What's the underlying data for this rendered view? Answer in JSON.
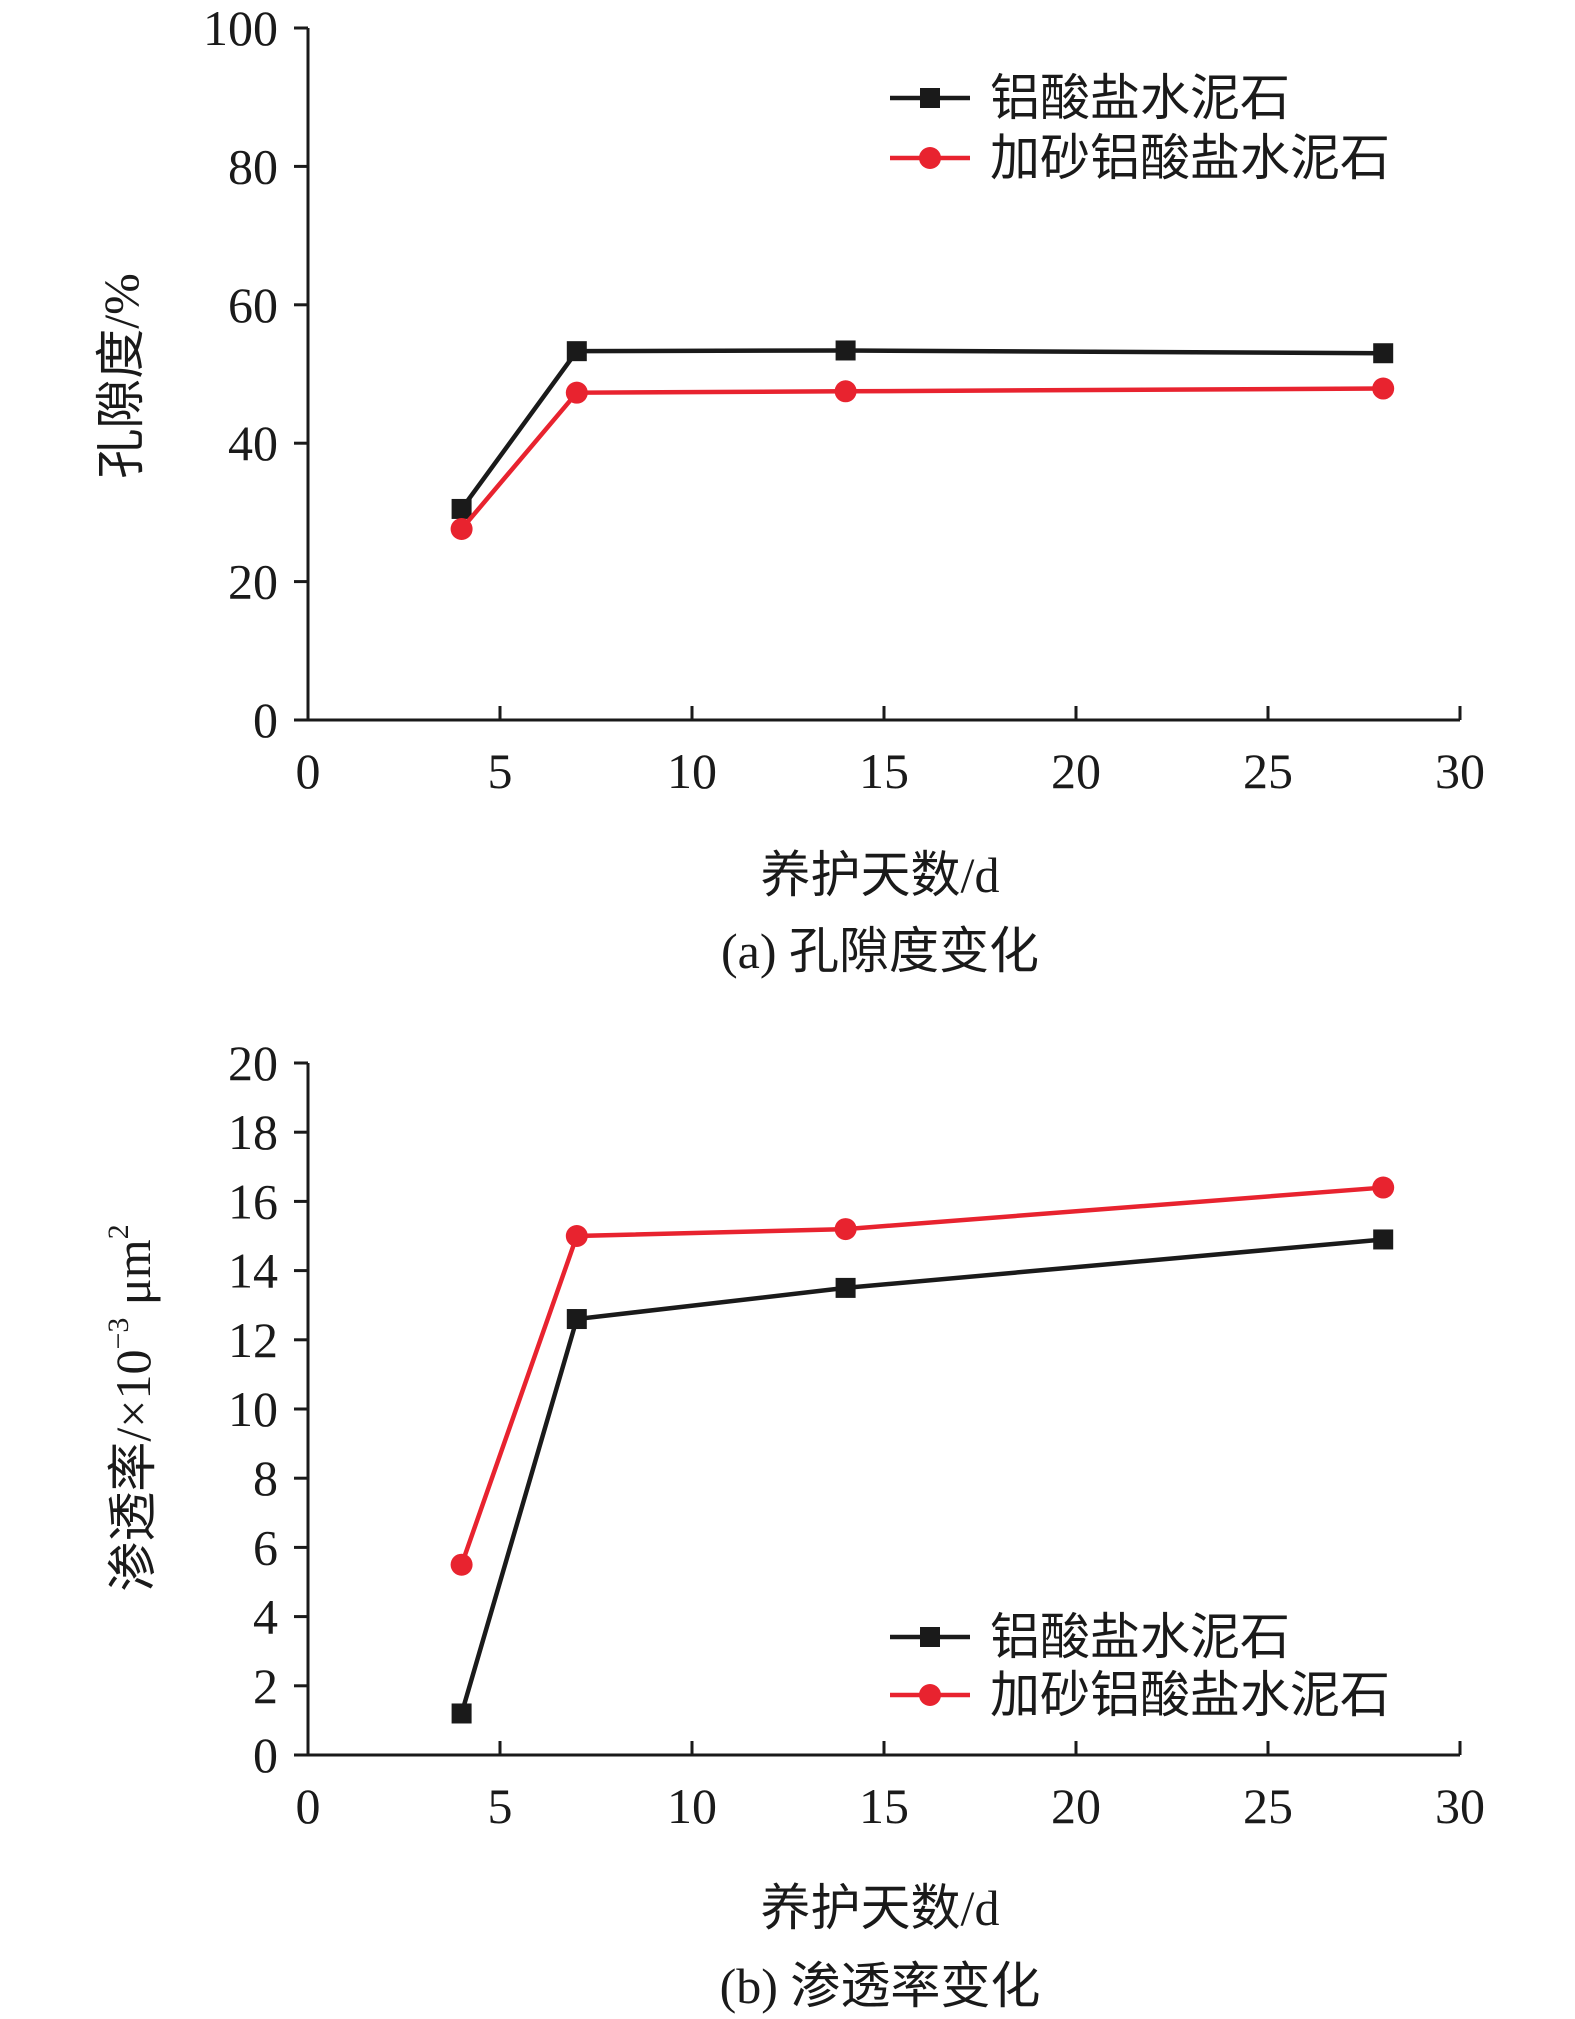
{
  "chart_data": [
    {
      "type": "line",
      "caption": "(a) 孔隙度变化",
      "xlabel": "养护天数/d",
      "ylabel": "孔隙度/%",
      "xlim": [
        0,
        30
      ],
      "ylim": [
        0,
        100
      ],
      "xticks": [
        "0",
        "5",
        "10",
        "15",
        "20",
        "25",
        "30"
      ],
      "yticks": [
        "0",
        "20",
        "40",
        "60",
        "80",
        "100"
      ],
      "x": [
        4,
        7,
        14,
        28
      ],
      "legend_position": "top-right",
      "series": [
        {
          "name": "铝酸盐水泥石",
          "color": "#1a1a1a",
          "marker": "square",
          "values": [
            30.5,
            53.3,
            53.4,
            53.0
          ]
        },
        {
          "name": "加砂铝酸盐水泥石",
          "color": "#e8232f",
          "marker": "circle",
          "values": [
            27.6,
            47.3,
            47.5,
            47.9
          ]
        }
      ]
    },
    {
      "type": "line",
      "caption": "(b) 渗透率变化",
      "xlabel": "养护天数/d",
      "ylabel_main": "渗透率/×10",
      "ylabel_exp": "−3",
      "ylabel_unit": " μm",
      "ylabel_unit_exp": "2",
      "xlim": [
        0,
        30
      ],
      "ylim": [
        0,
        20
      ],
      "xticks": [
        "0",
        "5",
        "10",
        "15",
        "20",
        "25",
        "30"
      ],
      "yticks": [
        "0",
        "2",
        "4",
        "6",
        "8",
        "10",
        "12",
        "14",
        "16",
        "18",
        "20"
      ],
      "x": [
        4,
        7,
        14,
        28
      ],
      "legend_position": "bottom-right",
      "series": [
        {
          "name": "铝酸盐水泥石",
          "color": "#1a1a1a",
          "marker": "square",
          "values": [
            1.2,
            12.6,
            13.5,
            14.9
          ]
        },
        {
          "name": "加砂铝酸盐水泥石",
          "color": "#e8232f",
          "marker": "circle",
          "values": [
            5.5,
            15.0,
            15.2,
            16.4
          ]
        }
      ]
    }
  ]
}
